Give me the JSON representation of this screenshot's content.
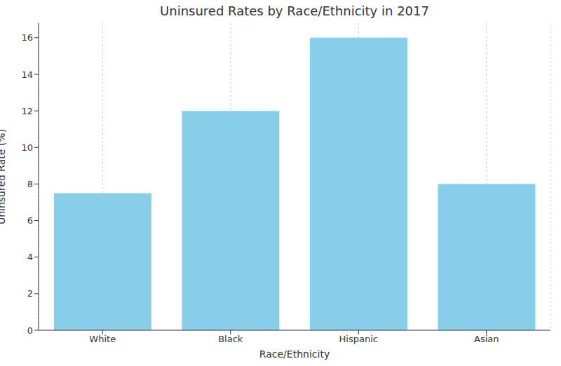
{
  "chart_data": {
    "type": "bar",
    "title": "Uninsured Rates by Race/Ethnicity in 2017",
    "x_label": "Race/Ethnicity",
    "y_label": "Uninsured Rate (%)",
    "categories": [
      "White",
      "Black",
      "Hispanic",
      "Asian"
    ],
    "values": [
      7.5,
      12,
      16,
      8
    ],
    "color": "#87ceeb",
    "ylim": [
      0,
      16.8
    ],
    "yticks": [
      0,
      2,
      4,
      6,
      8,
      10,
      12,
      14,
      16
    ],
    "grid": true
  }
}
